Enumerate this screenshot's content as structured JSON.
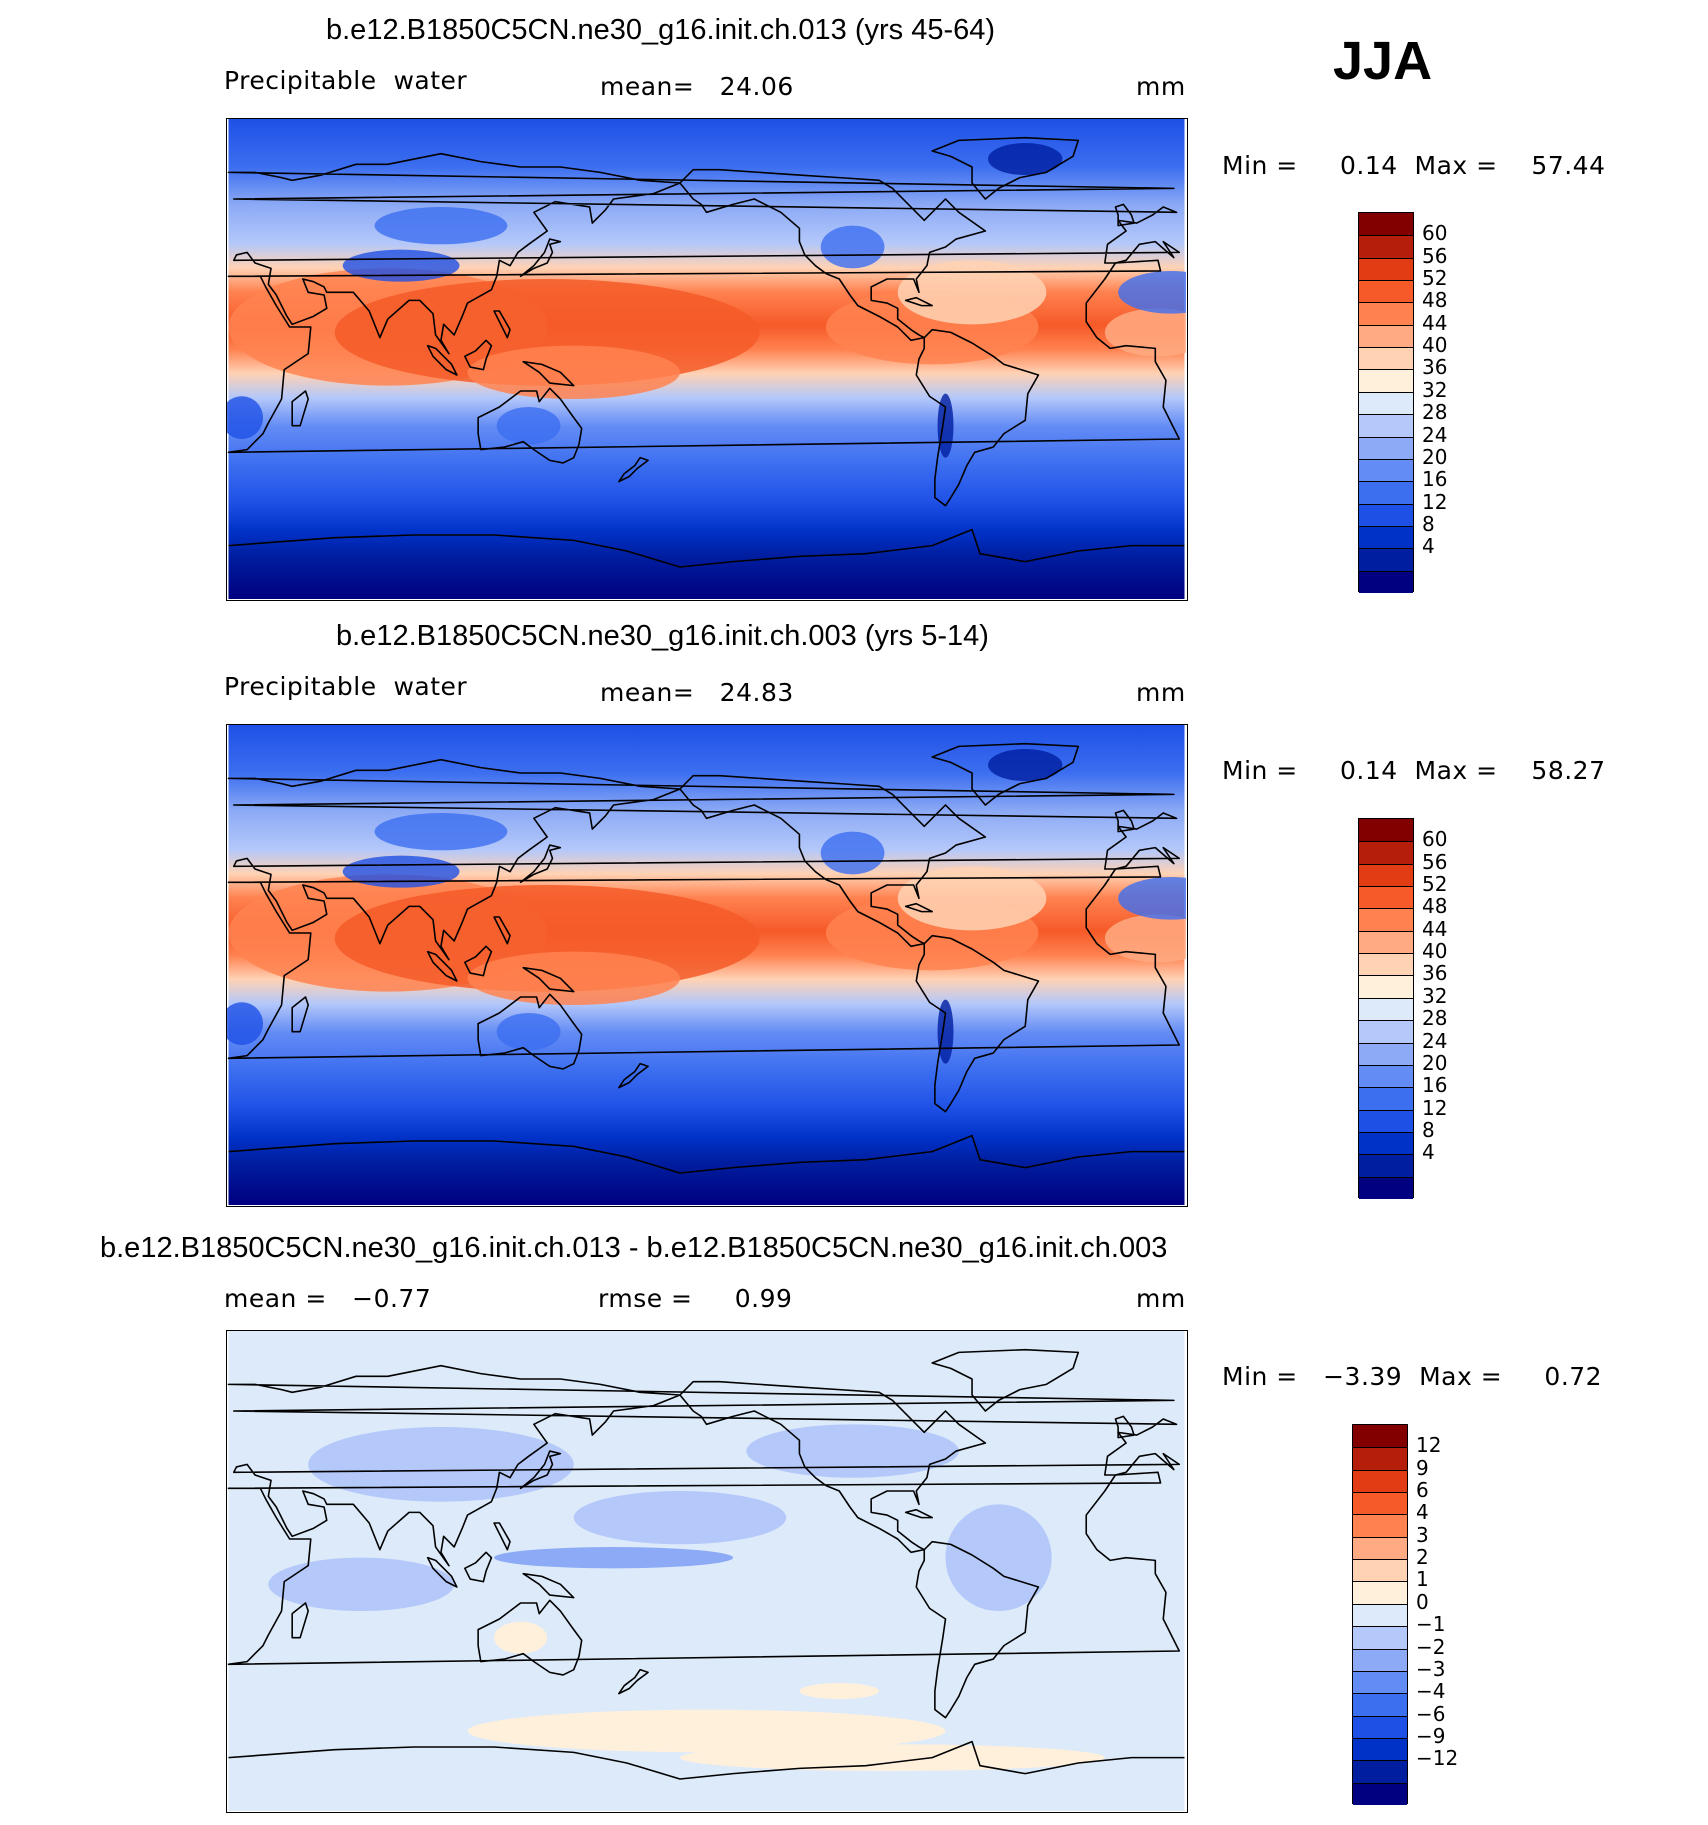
{
  "season": "JJA",
  "panels": [
    {
      "title": "b.e12.B1850C5CN.ne30_g16.init.ch.013 (yrs 45-64)",
      "left_label": "Precipitable  water",
      "center_label": "mean=   24.06",
      "units": "mm",
      "minmax": "Min =     0.14  Max =    57.44",
      "field": "moisture",
      "colorbar": {
        "colors": [
          "#000080",
          "#001ea0",
          "#0032c8",
          "#1e50e6",
          "#3c6ef0",
          "#648cf5",
          "#8caaf5",
          "#b4c8fa",
          "#dceafa",
          "#fff0dc",
          "#ffd2b4",
          "#ffaa82",
          "#ff8250",
          "#f55a28",
          "#e13c14",
          "#b41e0a",
          "#820000"
        ],
        "labels": [
          "4",
          "8",
          "12",
          "16",
          "20",
          "24",
          "28",
          "32",
          "36",
          "40",
          "44",
          "48",
          "52",
          "56",
          "60"
        ]
      }
    },
    {
      "title": "b.e12.B1850C5CN.ne30_g16.init.ch.003 (yrs 5-14)",
      "left_label": "Precipitable  water",
      "center_label": "mean=   24.83",
      "units": "mm",
      "minmax": "Min =     0.14  Max =    58.27",
      "field": "moisture",
      "colorbar": {
        "colors": [
          "#000080",
          "#001ea0",
          "#0032c8",
          "#1e50e6",
          "#3c6ef0",
          "#648cf5",
          "#8caaf5",
          "#b4c8fa",
          "#dceafa",
          "#fff0dc",
          "#ffd2b4",
          "#ffaa82",
          "#ff8250",
          "#f55a28",
          "#e13c14",
          "#b41e0a",
          "#820000"
        ],
        "labels": [
          "4",
          "8",
          "12",
          "16",
          "20",
          "24",
          "28",
          "32",
          "36",
          "40",
          "44",
          "48",
          "52",
          "56",
          "60"
        ]
      }
    },
    {
      "title": "b.e12.B1850C5CN.ne30_g16.init.ch.013 - b.e12.B1850C5CN.ne30_g16.init.ch.003",
      "left_label": "mean =   −0.77",
      "center_label": "rmse =     0.99",
      "units": "mm",
      "minmax": "Min =   −3.39  Max =     0.72",
      "field": "difference",
      "colorbar": {
        "colors": [
          "#000080",
          "#001ea0",
          "#0032c8",
          "#1e50e6",
          "#3c6ef0",
          "#648cf5",
          "#8caaf5",
          "#b4c8fa",
          "#dceafa",
          "#fff0dc",
          "#ffd2b4",
          "#ffaa82",
          "#ff8250",
          "#f55a28",
          "#e13c14",
          "#b41e0a",
          "#820000"
        ],
        "labels": [
          "−12",
          "−9",
          "−6",
          "−4",
          "−3",
          "−2",
          "−1",
          "0",
          "1",
          "2",
          "3",
          "4",
          "6",
          "9",
          "12"
        ]
      }
    }
  ]
}
